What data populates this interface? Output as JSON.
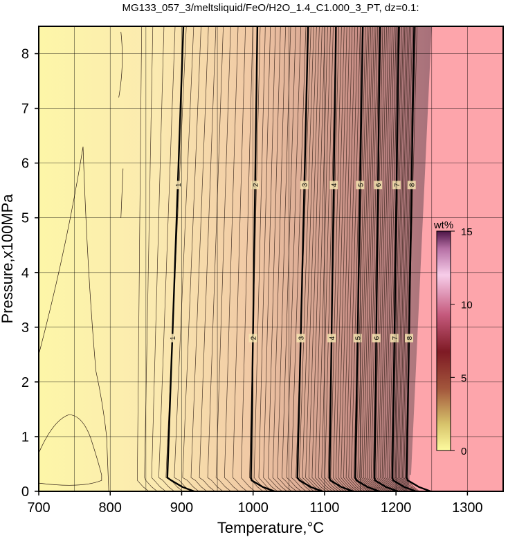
{
  "chart_data": {
    "type": "contour",
    "title": "MG133_057_3/meltsliquid/FeO/H2O_1.4_C1.000_3_PT, dz=0.1:",
    "xlabel": "Temperature,°C",
    "ylabel": "Pressure,x100MPa",
    "xlim": [
      700,
      1350
    ],
    "ylim": [
      0,
      8.5
    ],
    "x_ticks": [
      "700",
      "800",
      "900",
      "1000",
      "1100",
      "1200",
      "1300"
    ],
    "y_ticks": [
      "0",
      "1",
      "2",
      "3",
      "4",
      "5",
      "6",
      "7",
      "8"
    ],
    "grid": true,
    "colorbar": {
      "label": "wt%",
      "range": [
        0,
        15
      ],
      "ticks": [
        "0",
        "5",
        "10",
        "15"
      ],
      "position": "right-middle"
    },
    "contour_interval": 0.1,
    "labeled_contours": [
      {
        "level": "1",
        "T_low": 880,
        "T_high": 895
      },
      {
        "level": "2",
        "T_low": 997,
        "T_high": 1003
      },
      {
        "level": "3",
        "T_low": 1062,
        "T_high": 1072
      },
      {
        "level": "4",
        "T_low": 1107,
        "T_high": 1113
      },
      {
        "level": "5",
        "T_low": 1143,
        "T_high": 1150
      },
      {
        "level": "6",
        "T_low": 1170,
        "T_high": 1175
      },
      {
        "level": "7",
        "T_low": 1195,
        "T_high": 1201
      },
      {
        "level": "8",
        "T_low": 1215,
        "T_high": 1222
      }
    ],
    "label_pressures": [
      2.8,
      5.6
    ],
    "liquidus_boundary": {
      "T_low": 1220,
      "T_high": 1250
    },
    "colors": {
      "low": "#fdf6a8",
      "background_above_liquidus": "#fda5ab"
    }
  }
}
